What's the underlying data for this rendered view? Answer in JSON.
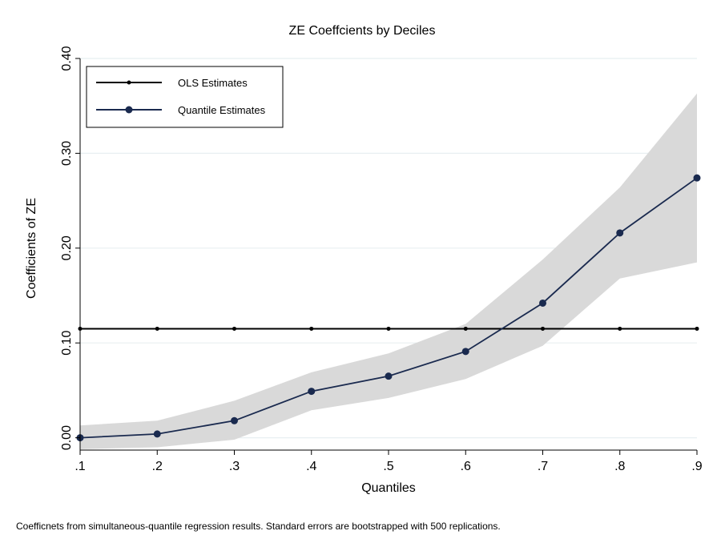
{
  "chart_data": {
    "type": "line",
    "title": "ZE Coeffcients by Deciles",
    "xlabel": "Quantiles",
    "ylabel": "Coefficients of ZE",
    "x": [
      0.1,
      0.2,
      0.3,
      0.4,
      0.5,
      0.6,
      0.7,
      0.8,
      0.9
    ],
    "x_tick_labels": [
      ".1",
      ".2",
      ".3",
      ".4",
      ".5",
      ".6",
      ".7",
      ".8",
      ".9"
    ],
    "y_ticks": [
      0.0,
      0.1,
      0.2,
      0.3,
      0.4
    ],
    "y_tick_labels": [
      "0.00",
      "0.10",
      "0.20",
      "0.30",
      "0.40"
    ],
    "xlim": [
      0.1,
      0.9
    ],
    "ylim": [
      -0.013,
      0.4
    ],
    "grid": "horizontal",
    "legend_position": "top-left",
    "series": [
      {
        "name": "OLS Estimates",
        "color": "#000000",
        "marker": "small-dot",
        "values": [
          0.115,
          0.115,
          0.115,
          0.115,
          0.115,
          0.115,
          0.115,
          0.115,
          0.115
        ]
      },
      {
        "name": "Quantile Estimates",
        "color": "#1a2a4f",
        "marker": "circle",
        "values": [
          0.0,
          0.004,
          0.018,
          0.049,
          0.065,
          0.091,
          0.142,
          0.216,
          0.274
        ],
        "ci_lower": [
          -0.012,
          -0.01,
          -0.002,
          0.029,
          0.042,
          0.062,
          0.097,
          0.168,
          0.185
        ],
        "ci_upper": [
          0.013,
          0.018,
          0.039,
          0.069,
          0.089,
          0.12,
          0.188,
          0.264,
          0.363
        ]
      }
    ],
    "ci_color": "#d9d9d9",
    "grid_color": "#e8eff1"
  },
  "note": "Coefficnets from simultaneous-quantile regression results. Standard errors are bootstrapped with 500 replications."
}
